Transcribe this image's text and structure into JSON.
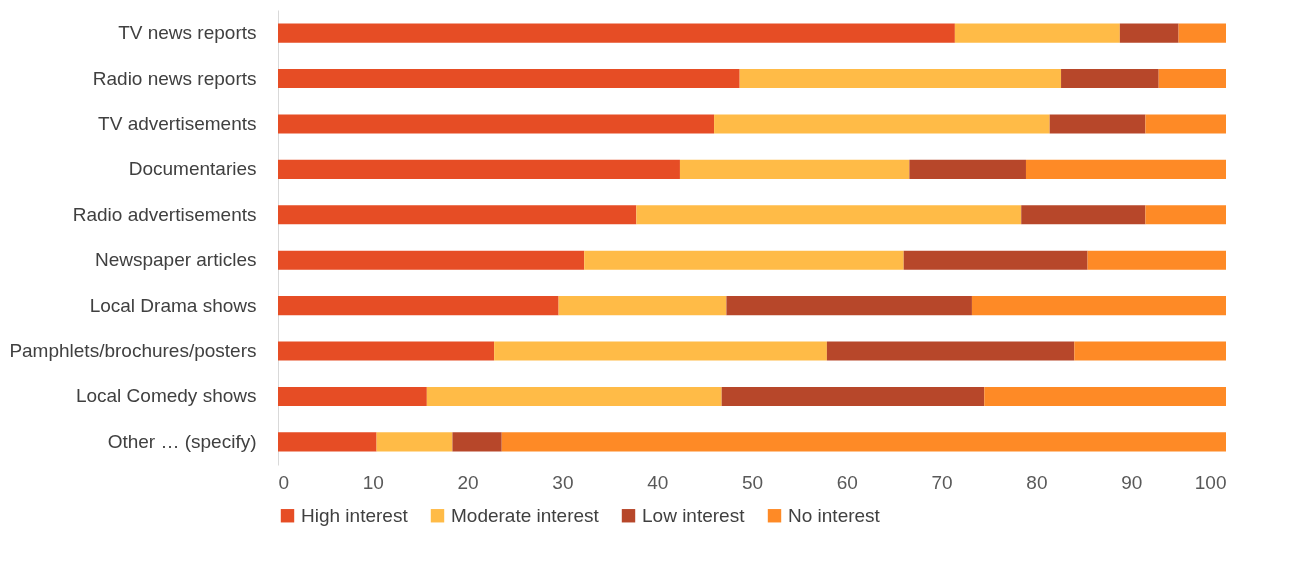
{
  "chart_data": {
    "type": "bar",
    "orientation": "horizontal",
    "stacked": true,
    "legend": "bottom",
    "grid": false,
    "categories": [
      "TV news reports",
      "Radio news reports",
      "TV advertisements",
      "Documentaries",
      "Radio advertisements",
      "Newspaper articles",
      "Local Drama shows",
      "Pamphlets/brochures/posters",
      "Local Comedy shows",
      "Other … (specify)"
    ],
    "series": [
      {
        "name": "High interest",
        "color": "#e64d25",
        "values": [
          71.4,
          48.7,
          46.0,
          42.4,
          37.8,
          32.3,
          29.6,
          22.8,
          15.7,
          10.4
        ]
      },
      {
        "name": "Moderate interest",
        "color": "#ffbb47",
        "values": [
          17.4,
          33.9,
          35.4,
          24.2,
          40.6,
          33.7,
          17.7,
          35.1,
          31.1,
          8.0
        ]
      },
      {
        "name": "Low interest",
        "color": "#b7472a",
        "values": [
          6.2,
          10.3,
          10.1,
          12.3,
          13.1,
          19.4,
          25.9,
          26.1,
          27.7,
          5.2
        ]
      },
      {
        "name": "No interest",
        "color": "#fe8a26",
        "values": [
          5.0,
          7.1,
          8.5,
          21.1,
          8.5,
          14.6,
          26.8,
          16.0,
          25.5,
          76.4
        ]
      }
    ],
    "xlim": [
      0,
      100
    ],
    "xticks": [
      0,
      10,
      20,
      30,
      40,
      50,
      60,
      70,
      80,
      90,
      100
    ]
  }
}
